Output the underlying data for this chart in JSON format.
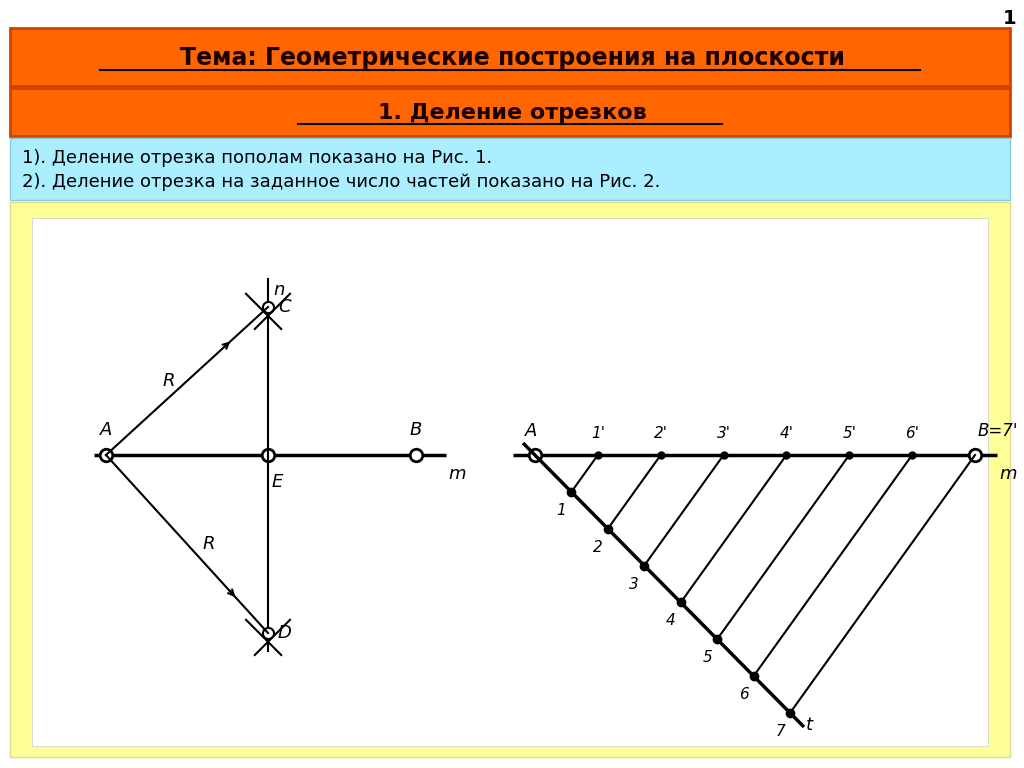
{
  "title1": "Тема: Геометрические построения на плоскости",
  "title2": "1. Деление отрезков",
  "text_line1": "1). Деление отрезка пополам показано на Рис. 1.",
  "text_line2": "2). Деление отрезка на заданное число частей показано на Рис. 2.",
  "bg_color": "#FFFFFF",
  "header1_color": "#FF6600",
  "header2_color": "#FF6600",
  "info_box_color": "#AAEEFF",
  "diagram_box_color": "#FFFF99",
  "page_number": "1"
}
